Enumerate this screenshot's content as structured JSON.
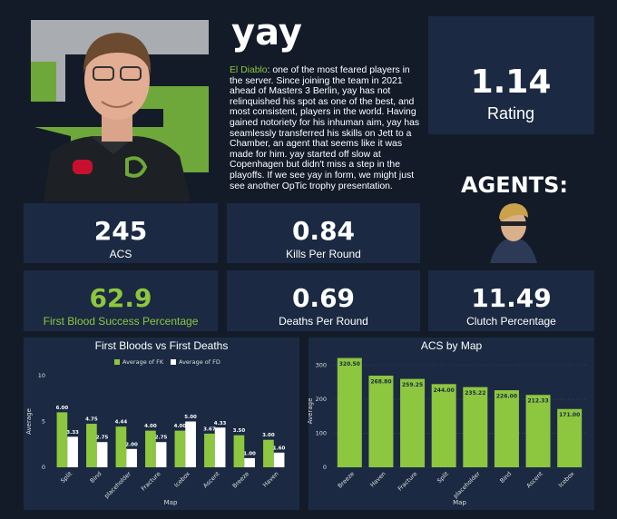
{
  "player": {
    "name": "yay",
    "bio_highlight": "El Diablo",
    "bio": ": one of the most feared players in the server. Since joining the team in 2021 ahead of Masters 3 Berlin, yay has not relinquished his spot as one of the best, and most consistent, players in the world. Having gained notoriety for his inhuman aim, yay has seamlessly transferred his skills on Jett to a Chamber, an agent that seems like it was made for him. yay started off slow at Copenhagen but didn't miss a step in the playoffs. If we see yay in form, we might just see another OpTic trophy presentation."
  },
  "rating": {
    "value": 1.14,
    "label": "Rating"
  },
  "agents_heading": "AGENTS:",
  "stats": [
    {
      "value": 245,
      "label": "ACS",
      "color": "#ffffff"
    },
    {
      "value": 0.84,
      "label": "Kills Per Round",
      "color": "#ffffff"
    },
    {
      "value": 62.9,
      "label": "First Blood Success Percentage",
      "color": "#8dc63f"
    },
    {
      "value": 0.69,
      "label": "Deaths Per Round",
      "color": "#ffffff"
    },
    {
      "value": 11.49,
      "label": "Clutch Percentage",
      "color": "#ffffff"
    }
  ],
  "chart_data": [
    {
      "type": "bar",
      "title": "First Bloods vs First Deaths",
      "xlabel": "Map",
      "ylabel": "Average",
      "categories": [
        "Split",
        "Bind",
        "placeholder",
        "Fracture",
        "Icebox",
        "Ascent",
        "Breeze",
        "Haven"
      ],
      "series": [
        {
          "name": "Average of FK",
          "color": "#8dc63f",
          "values": [
            6,
            4.75,
            4.44,
            4,
            4,
            3.67,
            3.5,
            3
          ],
          "value_labels": [
            "6.00",
            "4.75",
            "4.44",
            "4.00",
            "4.00",
            "3.67",
            "3.50",
            "3.00"
          ]
        },
        {
          "name": "Average of FD",
          "color": "#ffffff",
          "values": [
            3.33,
            2.75,
            2,
            2.75,
            5,
            4.33,
            1,
            1.6
          ],
          "value_labels": [
            "3.33",
            "2.75",
            "2.00",
            "2.75",
            "5.00",
            "4.33",
            "1.00",
            "1.60"
          ]
        }
      ],
      "ylim": [
        0,
        10
      ],
      "yticks": [
        0,
        5,
        10
      ],
      "grid": false,
      "legend": "top"
    },
    {
      "type": "bar",
      "title": "ACS by Map",
      "xlabel": "Map",
      "ylabel": "Average",
      "categories": [
        "Breeze",
        "Haven",
        "Fracture",
        "Split",
        "placeholder",
        "Bind",
        "Ascent",
        "Icebox"
      ],
      "values": [
        320.5,
        268.8,
        259.25,
        244,
        235.22,
        226,
        212.33,
        171
      ],
      "value_labels": [
        "320.50",
        "268.80",
        "259.25",
        "244.00",
        "235.22",
        "226.00",
        "212.33",
        "171.00"
      ],
      "color": "#8dc63f",
      "ylim": [
        0,
        330
      ],
      "yticks": [
        0,
        100,
        200,
        300
      ],
      "grid": true
    }
  ]
}
